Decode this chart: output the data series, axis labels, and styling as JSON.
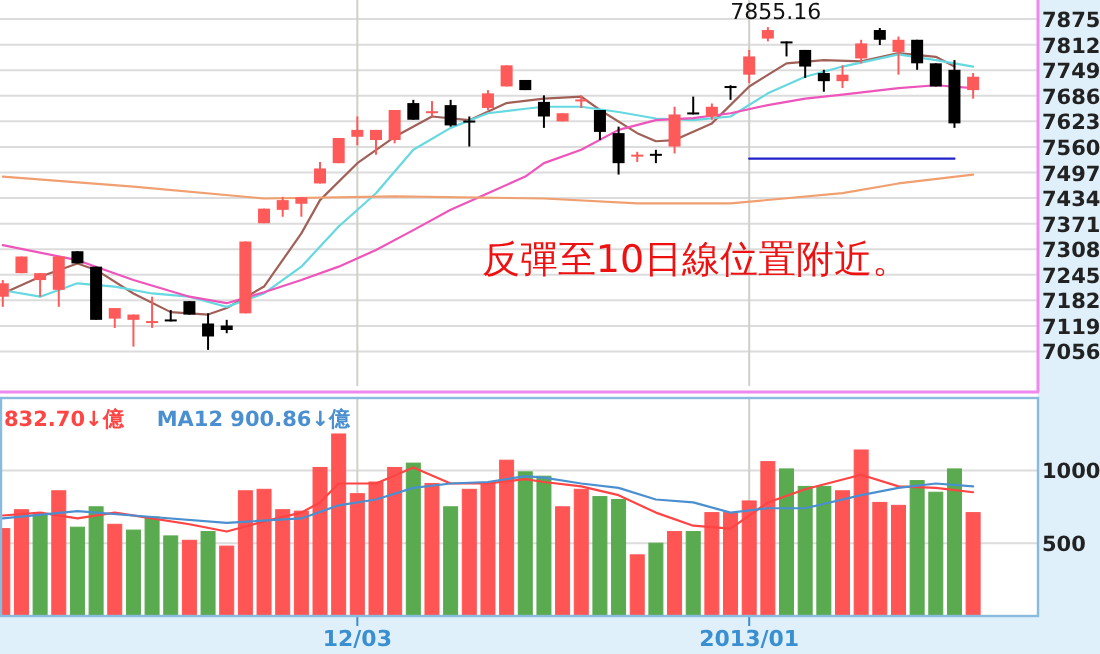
{
  "chart_data": [
    {
      "type": "candlestick",
      "categories": [
        null,
        null,
        null,
        null,
        null,
        null,
        null,
        null,
        null,
        null,
        null,
        null,
        null,
        null,
        null,
        null,
        null,
        null,
        null,
        null,
        null,
        null,
        null,
        null,
        null,
        null,
        null,
        null,
        null,
        null,
        null,
        null,
        null,
        null,
        null,
        null,
        null,
        null,
        null,
        null,
        null,
        null,
        null,
        null,
        null,
        null,
        null,
        null,
        null,
        null,
        null,
        null,
        null
      ],
      "ohlc": [
        [
          7191,
          7232,
          7166,
          7224
        ],
        [
          7249,
          7290,
          7249,
          7290
        ],
        [
          7232,
          7249,
          7191,
          7249
        ],
        [
          7208,
          7290,
          7166,
          7290
        ],
        [
          7303,
          7303,
          7273,
          7273
        ],
        [
          7265,
          7265,
          7134,
          7134
        ],
        [
          7137,
          7163,
          7114,
          7163
        ],
        [
          7134,
          7147,
          7068,
          7147
        ],
        [
          7129,
          7191,
          7114,
          7131
        ],
        [
          7135,
          7158,
          7130,
          7133
        ],
        [
          7180,
          7180,
          7147,
          7147
        ],
        [
          7125,
          7150,
          7060,
          7093
        ],
        [
          7120,
          7134,
          7101,
          7109
        ],
        [
          7150,
          7327,
          7150,
          7327
        ],
        [
          7372,
          7408,
          7372,
          7408
        ],
        [
          7405,
          7437,
          7388,
          7429
        ],
        [
          7420,
          7436,
          7388,
          7436
        ],
        [
          7470,
          7523,
          7470,
          7507
        ],
        [
          7520,
          7582,
          7520,
          7582
        ],
        [
          7585,
          7635,
          7564,
          7602
        ],
        [
          7577,
          7602,
          7541,
          7602
        ],
        [
          7577,
          7651,
          7569,
          7651
        ],
        [
          7668,
          7676,
          7627,
          7627
        ],
        [
          7644,
          7673,
          7635,
          7648
        ],
        [
          7663,
          7676,
          7610,
          7613
        ],
        [
          7625,
          7635,
          7561,
          7622
        ],
        [
          7656,
          7700,
          7651,
          7692
        ],
        [
          7709,
          7761,
          7709,
          7761
        ],
        [
          7725,
          7725,
          7700,
          7700
        ],
        [
          7671,
          7687,
          7607,
          7635
        ],
        [
          7623,
          7643,
          7623,
          7643
        ],
        [
          7674,
          7687,
          7656,
          7677
        ],
        [
          7651,
          7651,
          7577,
          7597
        ],
        [
          7594,
          7610,
          7492,
          7520
        ],
        [
          7538,
          7548,
          7523,
          7541
        ],
        [
          7543,
          7553,
          7520,
          7540
        ],
        [
          7561,
          7659,
          7544,
          7640
        ],
        [
          7645,
          7684,
          7640,
          7641
        ],
        [
          7635,
          7667,
          7627,
          7659
        ],
        [
          7710,
          7712,
          7676,
          7707
        ],
        [
          7738,
          7799,
          7717,
          7783
        ],
        [
          7827,
          7855.16,
          7820,
          7848
        ],
        [
          7820,
          7820,
          7783,
          7818
        ],
        [
          7799,
          7799,
          7730,
          7758
        ],
        [
          7742,
          7750,
          7696,
          7722
        ],
        [
          7722,
          7761,
          7705,
          7738
        ],
        [
          7778,
          7824,
          7766,
          7815
        ],
        [
          7848,
          7853,
          7811,
          7824
        ],
        [
          7794,
          7832,
          7738,
          7824
        ],
        [
          7824,
          7824,
          7750,
          7766
        ],
        [
          7766,
          7766,
          7709,
          7709
        ],
        [
          7750,
          7774,
          7607,
          7618
        ],
        [
          7700,
          7742,
          7679,
          7733
        ]
      ],
      "colors": [
        "#ff5a5a",
        "#ff5a5a",
        "#ff5a5a",
        "#ff5a5a",
        "#000000",
        "#000000",
        "#ff5a5a",
        "#ff5a5a",
        "#ff5a5a",
        "#000000",
        "#000000",
        "#000000",
        "#000000",
        "#ff5a5a",
        "#ff5a5a",
        "#ff5a5a",
        "#ff5a5a",
        "#ff5a5a",
        "#ff5a5a",
        "#ff5a5a",
        "#ff5a5a",
        "#ff5a5a",
        "#000000",
        "#ff5a5a",
        "#000000",
        "#000000",
        "#ff5a5a",
        "#ff5a5a",
        "#000000",
        "#000000",
        "#ff5a5a",
        "#ff5a5a",
        "#000000",
        "#000000",
        "#ff5a5a",
        "#000000",
        "#ff5a5a",
        "#000000",
        "#ff5a5a",
        "#000000",
        "#ff5a5a",
        "#ff5a5a",
        "#000000",
        "#000000",
        "#000000",
        "#ff5a5a",
        "#ff5a5a",
        "#000000",
        "#ff5a5a",
        "#000000",
        "#000000",
        "#000000",
        "#ff5a5a"
      ],
      "series": [
        {
          "type": "line",
          "color": "#a06058",
          "values": [
            7199,
            null,
            7240,
            null,
            7273,
            7257,
            null,
            7199,
            null,
            7153,
            null,
            7147,
            7163,
            null,
            7216,
            null,
            7347,
            7429,
            null,
            7520,
            null,
            7585,
            null,
            7635,
            null,
            7626,
            null,
            7668,
            null,
            7679,
            null,
            7684,
            7651,
            null,
            7594,
            7574,
            7577,
            null,
            7618,
            null,
            7709,
            null,
            7766,
            null,
            7774,
            null,
            7771,
            null,
            7791,
            null,
            7782,
            7758,
            null
          ]
        },
        {
          "type": "line",
          "color": "#66d8e0",
          "values": [
            7207,
            null,
            7191,
            null,
            7224,
            null,
            7216,
            null,
            7199,
            null,
            7191,
            null,
            7166,
            null,
            7199,
            null,
            7265,
            null,
            7364,
            null,
            7446,
            null,
            7553,
            null,
            7607,
            null,
            7643,
            null,
            7654,
            7659,
            null,
            7659,
            null,
            7646,
            null,
            7630,
            null,
            7626,
            null,
            7635,
            null,
            7692,
            null,
            7733,
            null,
            7758,
            null,
            null,
            7788,
            null,
            7774,
            null,
            7758
          ]
        },
        {
          "type": "line",
          "color": "#ee55bb",
          "values": [
            7318,
            null,
            null,
            null,
            7281,
            null,
            null,
            7232,
            null,
            null,
            7191,
            null,
            7175,
            null,
            7202,
            null,
            7232,
            null,
            7265,
            null,
            7306,
            null,
            7355,
            null,
            7405,
            null,
            7446,
            null,
            7487,
            7520,
            null,
            7553,
            null,
            7602,
            null,
            7626,
            null,
            7631,
            null,
            7643,
            null,
            7663,
            null,
            7679,
            null,
            7689,
            null,
            null,
            7705,
            null,
            7712,
            null,
            7705
          ]
        },
        {
          "type": "line",
          "color": "#f0a070",
          "values": [
            7487,
            null,
            null,
            null,
            null,
            null,
            null,
            7462,
            null,
            null,
            null,
            null,
            null,
            null,
            7433,
            null,
            null,
            null,
            null,
            null,
            null,
            7438,
            null,
            null,
            null,
            null,
            null,
            null,
            null,
            7433,
            null,
            null,
            null,
            null,
            7421,
            null,
            null,
            null,
            null,
            7421,
            null,
            null,
            null,
            null,
            null,
            7446,
            null,
            null,
            7470,
            null,
            null,
            null,
            7492
          ]
        },
        {
          "type": "line",
          "color": "#2222cc",
          "values": [
            null,
            null,
            null,
            null,
            null,
            null,
            null,
            null,
            null,
            null,
            null,
            null,
            null,
            null,
            null,
            null,
            null,
            null,
            null,
            null,
            null,
            null,
            null,
            null,
            null,
            null,
            null,
            null,
            null,
            null,
            null,
            null,
            null,
            null,
            null,
            null,
            null,
            null,
            null,
            null,
            7531,
            null,
            null,
            null,
            null,
            null,
            null,
            null,
            null,
            null,
            null,
            7531,
            null
          ]
        }
      ],
      "ylim": [
        6971,
        7922
      ],
      "yticks": [
        7056,
        7119,
        7182,
        7245,
        7308,
        7371,
        7434,
        7497,
        7560,
        7623,
        7686,
        7749,
        7812,
        7875
      ],
      "tick_labels": "y",
      "grid": true,
      "annotations": [
        {
          "text": "7855.16",
          "y": 7855.16
        },
        "反彈至10日線位置附近。"
      ]
    },
    {
      "type": "bar",
      "categories": [
        null,
        null,
        null,
        null,
        null,
        null,
        null,
        null,
        null,
        null,
        null,
        null,
        null,
        null,
        null,
        null,
        null,
        null,
        null,
        "12/03",
        null,
        null,
        null,
        null,
        null,
        null,
        null,
        null,
        null,
        null,
        null,
        null,
        null,
        null,
        null,
        null,
        null,
        null,
        null,
        null,
        "2013/01",
        null,
        null,
        null,
        null,
        null,
        null,
        null,
        null,
        null,
        null,
        null,
        null
      ],
      "series": [
        {
          "type": "bar",
          "values": [
            600,
            730,
            700,
            860,
            610,
            750,
            630,
            590,
            680,
            550,
            520,
            580,
            480,
            860,
            870,
            730,
            720,
            1020,
            1250,
            840,
            920,
            1020,
            1050,
            910,
            750,
            870,
            910,
            1070,
            990,
            960,
            750,
            870,
            820,
            800,
            420,
            500,
            580,
            580,
            710,
            710,
            790,
            1060,
            1010,
            890,
            890,
            860,
            1140,
            780,
            760,
            930,
            850,
            1010,
            710
          ],
          "colors": [
            "#ff5555",
            "#ff5555",
            "#5aaa50",
            "#ff5555",
            "#5aaa50",
            "#5aaa50",
            "#ff5555",
            "#5aaa50",
            "#5aaa50",
            "#5aaa50",
            "#ff5555",
            "#5aaa50",
            "#ff5555",
            "#ff5555",
            "#ff5555",
            "#ff5555",
            "#ff5555",
            "#ff5555",
            "#ff5555",
            "#ff5555",
            "#ff5555",
            "#ff5555",
            "#5aaa50",
            "#ff5555",
            "#5aaa50",
            "#ff5555",
            "#ff5555",
            "#ff5555",
            "#5aaa50",
            "#5aaa50",
            "#ff5555",
            "#ff5555",
            "#5aaa50",
            "#5aaa50",
            "#ff5555",
            "#5aaa50",
            "#ff5555",
            "#5aaa50",
            "#ff5555",
            "#ff5555",
            "#ff5555",
            "#ff5555",
            "#5aaa50",
            "#5aaa50",
            "#5aaa50",
            "#ff5555",
            "#ff5555",
            "#ff5555",
            "#ff5555",
            "#5aaa50",
            "#5aaa50",
            "#5aaa50",
            "#ff5555"
          ]
        },
        {
          "type": "line",
          "name": "832.70↓億",
          "color": "#ff4444",
          "values": [
            690,
            null,
            710,
            null,
            670,
            null,
            710,
            null,
            670,
            null,
            630,
            null,
            580,
            null,
            650,
            null,
            710,
            780,
            910,
            null,
            910,
            null,
            1020,
            null,
            910,
            null,
            910,
            null,
            940,
            920,
            null,
            890,
            null,
            830,
            null,
            710,
            null,
            620,
            null,
            600,
            null,
            780,
            null,
            870,
            null,
            null,
            970,
            null,
            890,
            null,
            880,
            null,
            850
          ]
        },
        {
          "type": "line",
          "name": "MA12 900.86↓億",
          "color": "#4a90d0",
          "values": [
            670,
            null,
            null,
            null,
            720,
            null,
            null,
            null,
            680,
            null,
            null,
            null,
            640,
            null,
            null,
            null,
            670,
            null,
            760,
            null,
            800,
            null,
            880,
            null,
            910,
            null,
            920,
            null,
            960,
            950,
            null,
            910,
            null,
            880,
            null,
            800,
            null,
            780,
            null,
            710,
            null,
            740,
            null,
            740,
            null,
            null,
            830,
            null,
            880,
            null,
            910,
            null,
            890
          ]
        }
      ],
      "ylim": [
        0,
        1497
      ],
      "yticks": [
        500,
        1000
      ],
      "grid": true,
      "legend": "top left"
    }
  ]
}
